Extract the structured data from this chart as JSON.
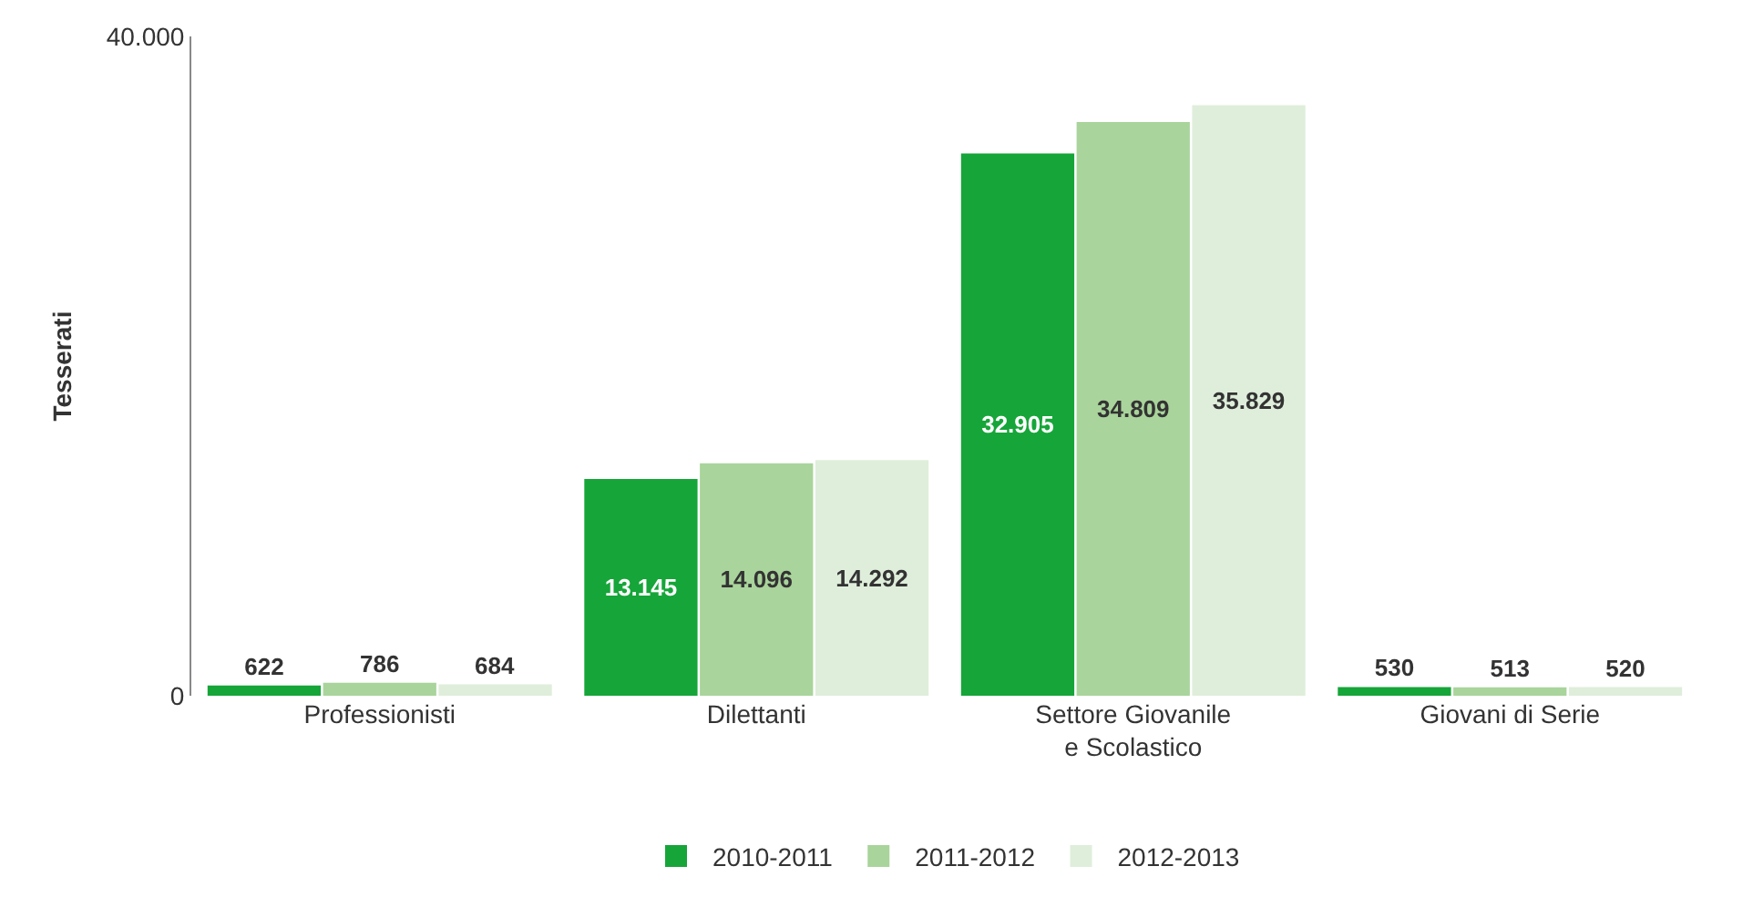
{
  "chart_data": {
    "type": "bar",
    "ylabel": "Tesserati",
    "categories": [
      "Professionisti",
      "Dilettanti",
      "Settore Giovanile\ne Scolastico",
      "Giovani di Serie"
    ],
    "series": [
      {
        "name": "2010-2011",
        "color": "#16a539",
        "values": [
          622,
          13145,
          32905,
          530
        ],
        "value_labels": [
          "622",
          "13.145",
          "32.905",
          "530"
        ]
      },
      {
        "name": "2011-2012",
        "color": "#a9d49b",
        "values": [
          786,
          14096,
          34809,
          513
        ],
        "value_labels": [
          "786",
          "14.096",
          "34.809",
          "513"
        ]
      },
      {
        "name": "2012-2013",
        "color": "#dfeedb",
        "values": [
          684,
          14292,
          35829,
          520
        ],
        "value_labels": [
          "684",
          "14.292",
          "35.829",
          "520"
        ]
      }
    ],
    "ylim": [
      0,
      40000
    ],
    "yticks": [
      0,
      {
        "value": 40000,
        "label": "40.000"
      }
    ],
    "legend": "bottom"
  }
}
